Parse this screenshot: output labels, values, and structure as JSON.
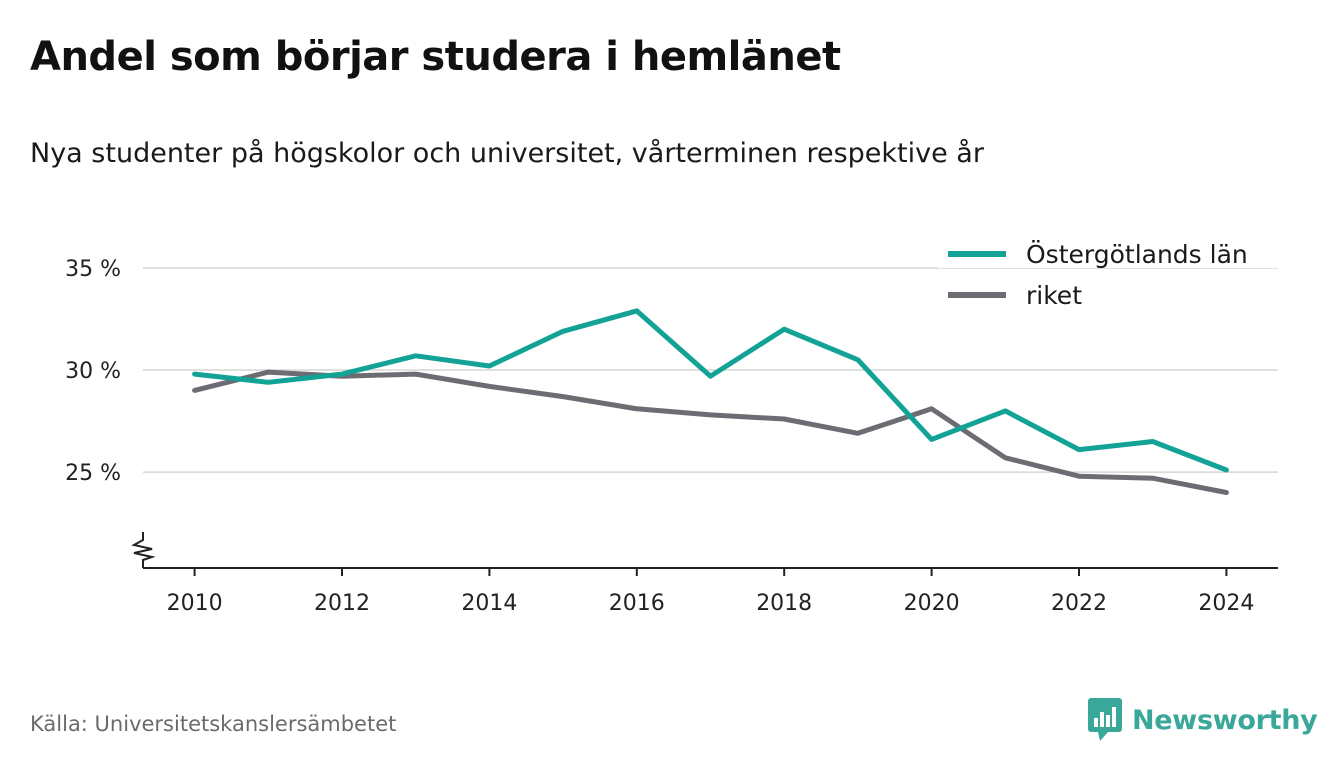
{
  "title": "Andel som börjar studera i hemlänet",
  "subtitle": "Nya studenter på högskolor och universitet, vårterminen respektive år",
  "source": "Källa: Universitetskanslersämbetet",
  "brand": {
    "name": "Newsworthy",
    "icon": "newsworthy-logo-icon",
    "color": "#3aa79b"
  },
  "chart_data": {
    "type": "line",
    "x": [
      2010,
      2011,
      2012,
      2013,
      2014,
      2015,
      2016,
      2017,
      2018,
      2019,
      2020,
      2021,
      2022,
      2023,
      2024
    ],
    "series": [
      {
        "name": "Östergötlands län",
        "color": "#13a396",
        "values": [
          29.8,
          29.4,
          29.8,
          30.7,
          30.2,
          31.9,
          32.9,
          29.7,
          32.0,
          30.5,
          26.6,
          28.0,
          26.1,
          26.5,
          25.1
        ]
      },
      {
        "name": "riket",
        "color": "#6d6c72",
        "values": [
          29.0,
          29.9,
          29.7,
          29.8,
          29.2,
          28.7,
          28.1,
          27.8,
          27.6,
          26.9,
          28.1,
          25.7,
          24.8,
          24.7,
          24.0
        ]
      }
    ],
    "xticks": [
      2010,
      2012,
      2014,
      2016,
      2018,
      2020,
      2022,
      2024
    ],
    "yticks": [
      {
        "value": 25,
        "label": "25 %"
      },
      {
        "value": 30,
        "label": "30 %"
      },
      {
        "value": 35,
        "label": "35 %"
      }
    ],
    "xlim": [
      2009.3,
      2024.7
    ],
    "ylim": [
      20.3,
      35
    ],
    "grid": true,
    "axis_break": true,
    "legend_position": "top-right",
    "title": "Andel som börjar studera i hemlänet",
    "xlabel": "",
    "ylabel": ""
  }
}
